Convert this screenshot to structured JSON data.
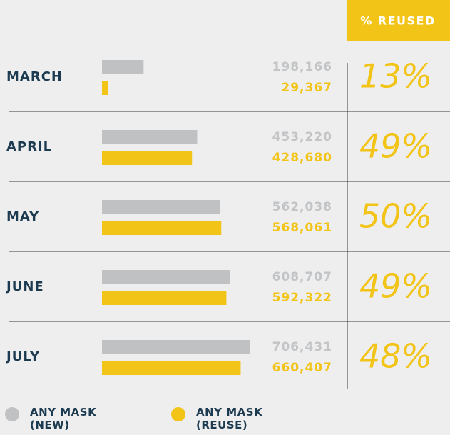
{
  "chart_data": {
    "type": "bar",
    "categories": [
      "MARCH",
      "APRIL",
      "MAY",
      "JUNE",
      "JULY"
    ],
    "series": [
      {
        "name": "ANY MASK (NEW)",
        "color": "#bfc1c3",
        "values": [
          198166,
          453220,
          562038,
          608707,
          706431
        ],
        "value_labels": [
          "198,166",
          "453,220",
          "562,038",
          "608,707",
          "706,431"
        ]
      },
      {
        "name": "ANY MASK (REUSE)",
        "color": "#f2c417",
        "values": [
          29367,
          428680,
          568061,
          592322,
          660407
        ],
        "value_labels": [
          "29,367",
          "428,680",
          "568,061",
          "592,322",
          "660,407"
        ]
      }
    ],
    "reused": {
      "title": "% REUSED",
      "values": [
        13,
        49,
        50,
        49,
        48
      ],
      "value_labels": [
        "13%",
        "49%",
        "50%",
        "49%",
        "48%"
      ]
    }
  }
}
